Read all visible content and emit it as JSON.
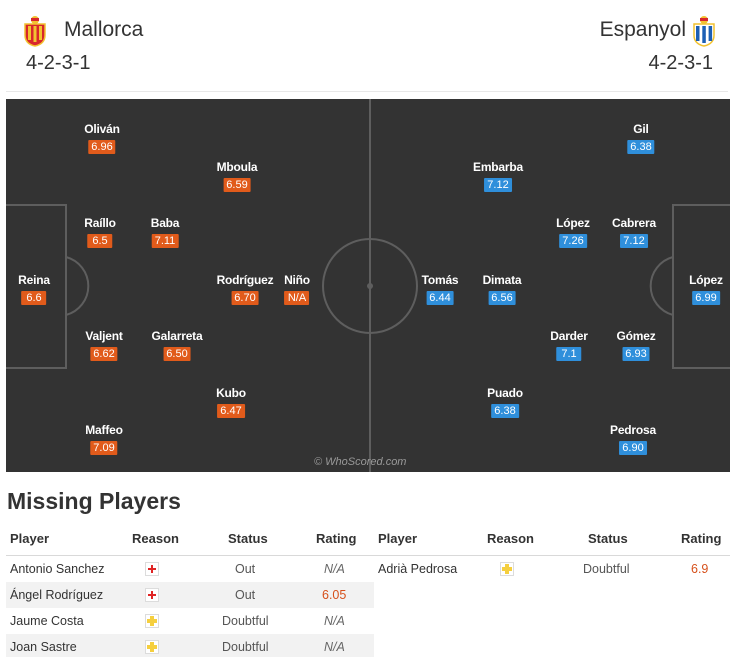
{
  "header": {
    "home": {
      "name": "Mallorca",
      "formation": "4-2-3-1",
      "crest": "mallorca-crest-icon"
    },
    "away": {
      "name": "Espanyol",
      "formation": "4-2-3-1",
      "crest": "espanyol-crest-icon"
    }
  },
  "pitch": {
    "watermark": "© WhoScored.com",
    "home_players": [
      {
        "name": "Reina",
        "rating": "6.6"
      },
      {
        "name": "Oliván",
        "rating": "6.96"
      },
      {
        "name": "Raíllo",
        "rating": "6.5"
      },
      {
        "name": "Valjent",
        "rating": "6.62"
      },
      {
        "name": "Maffeo",
        "rating": "7.09"
      },
      {
        "name": "Baba",
        "rating": "7.11"
      },
      {
        "name": "Galarreta",
        "rating": "6.50"
      },
      {
        "name": "Mboula",
        "rating": "6.59"
      },
      {
        "name": "Rodríguez",
        "rating": "6.70"
      },
      {
        "name": "Kubo",
        "rating": "6.47"
      },
      {
        "name": "Niño",
        "rating": "N/A"
      }
    ],
    "away_players": [
      {
        "name": "López",
        "rating": "6.99"
      },
      {
        "name": "Gil",
        "rating": "6.38"
      },
      {
        "name": "Cabrera",
        "rating": "7.12"
      },
      {
        "name": "Gómez",
        "rating": "6.93"
      },
      {
        "name": "Pedrosa",
        "rating": "6.90"
      },
      {
        "name": "López",
        "rating": "7.26"
      },
      {
        "name": "Darder",
        "rating": "7.1"
      },
      {
        "name": "Embarba",
        "rating": "7.12"
      },
      {
        "name": "Dimata",
        "rating": "6.56"
      },
      {
        "name": "Puado",
        "rating": "6.38"
      },
      {
        "name": "Tomás",
        "rating": "6.44"
      }
    ]
  },
  "missing": {
    "title": "Missing Players",
    "columns": {
      "player": "Player",
      "reason": "Reason",
      "status": "Status",
      "rating": "Rating"
    },
    "home": [
      {
        "player": "Antonio Sanchez",
        "reason": "injury-cross-icon",
        "status": "Out",
        "rating": "N/A"
      },
      {
        "player": "Ángel Rodríguez",
        "reason": "injury-cross-icon",
        "status": "Out",
        "rating": "6.05"
      },
      {
        "player": "Jaume Costa",
        "reason": "doubtful-cross-icon",
        "status": "Doubtful",
        "rating": "N/A"
      },
      {
        "player": "Joan Sastre",
        "reason": "doubtful-cross-icon",
        "status": "Doubtful",
        "rating": "N/A"
      }
    ],
    "away": [
      {
        "player": "Adrià Pedrosa",
        "reason": "doubtful-cross-icon",
        "status": "Doubtful",
        "rating": "6.9"
      }
    ]
  },
  "colors": {
    "pitch": "#333333",
    "home_rating": "#e15b1b",
    "away_rating": "#2f8fdb",
    "injury": "#e02424",
    "doubtful": "#f5cf3f"
  }
}
